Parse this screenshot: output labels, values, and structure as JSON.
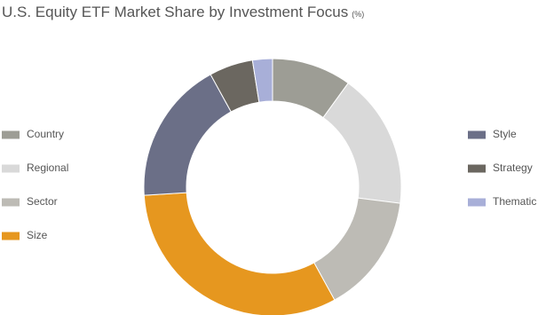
{
  "chart_data": {
    "type": "donut",
    "title": "U.S. Equity ETF Market Share by Investment Focus",
    "unit": "(%)",
    "categories": [
      "Country",
      "Regional",
      "Sector",
      "Size",
      "Style",
      "Strategy",
      "Thematic"
    ],
    "values": [
      10,
      17,
      15,
      32,
      18,
      5.5,
      2.5
    ],
    "colors": [
      "#9d9d95",
      "#d9d9d9",
      "#bdbbb5",
      "#e6971f",
      "#6b6f87",
      "#6b6760",
      "#a8afd8"
    ]
  }
}
